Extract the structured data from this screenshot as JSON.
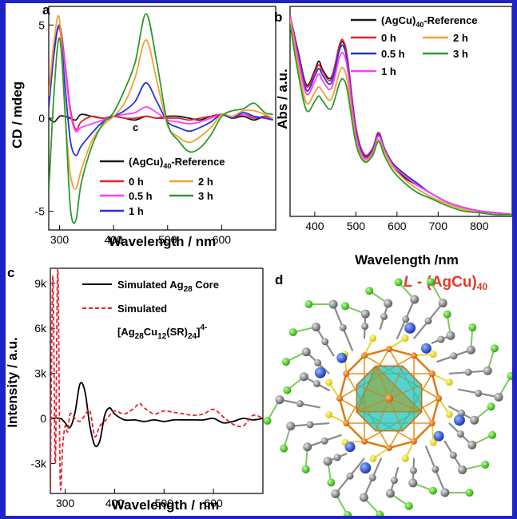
{
  "colors": {
    "frame": "#1e22c8",
    "reference": "#1a1a1a",
    "h0": "#e8212a",
    "h05": "#ff3cff",
    "h1": "#2432e0",
    "h2": "#f2a033",
    "h3": "#2b9a2b",
    "simulated_core": "#000000",
    "simulated_cluster": "#e8212a"
  },
  "panel_a": {
    "label": "a",
    "inline_label": "c",
    "ylabel": "CD / mdeg",
    "xlabel": "Wavelength / nm",
    "legend": [
      {
        "label": "(AgCu)",
        "sub": "40",
        "tail": "-Reference",
        "color_key": "reference"
      },
      {
        "label": "0 h",
        "color_key": "h0"
      },
      {
        "label": "2 h",
        "color_key": "h2"
      },
      {
        "label": "0.5 h",
        "color_key": "h05"
      },
      {
        "label": "3 h",
        "color_key": "h3"
      },
      {
        "label": "1 h",
        "color_key": "h1"
      }
    ]
  },
  "panel_b": {
    "label": "b",
    "ylabel": "Abs / a.u.",
    "xlabel": "Wavelength /nm",
    "legend": [
      {
        "label": "(AgCu)",
        "sub": "40",
        "tail": "-Reference",
        "color_key": "reference"
      },
      {
        "label": "0 h",
        "color_key": "h0"
      },
      {
        "label": "2 h",
        "color_key": "h2"
      },
      {
        "label": "0.5 h",
        "color_key": "h1"
      },
      {
        "label": "3 h",
        "color_key": "h3"
      },
      {
        "label": "1 h",
        "color_key": "h05"
      }
    ]
  },
  "panel_c": {
    "label": "c",
    "ylabel": "Intensity / a.u.",
    "xlabel": "Wavelength / nm",
    "legend": [
      {
        "label": "Simulated  Ag",
        "sub": "28",
        "tail": " Core",
        "style": "solid"
      },
      {
        "label": "Simulated",
        "style": "dashed"
      }
    ],
    "formula": {
      "a": "[Ag",
      "s1": "28",
      "b": "Cu",
      "s2": "12",
      "c": "(SR)",
      "s3": "24",
      "d": "]",
      "sup": "4-"
    }
  },
  "panel_d": {
    "label": "d",
    "title_prefix": "L",
    "title_mid": " - (AgCu)",
    "title_sub": "40",
    "title_color": "#e33a2a"
  },
  "chart_data": [
    {
      "type": "line",
      "panel": "a",
      "xlim": [
        280,
        700
      ],
      "ylim": [
        -6,
        6
      ],
      "xticks": [
        300,
        400,
        500,
        600
      ],
      "yticks": [
        -5,
        0,
        5
      ],
      "series": [
        {
          "name": "(AgCu)40-Reference",
          "color_key": "reference",
          "x": [
            280,
            290,
            300,
            310,
            320,
            330,
            340,
            360,
            380,
            400,
            420,
            440,
            460,
            480,
            500,
            520,
            540,
            560,
            580,
            600,
            620,
            640,
            660,
            680,
            695
          ],
          "y": [
            0,
            -0.2,
            0.1,
            0.1,
            0,
            -0.1,
            0.2,
            0.1,
            0,
            0.1,
            0,
            -0.1,
            0.1,
            0,
            0.1,
            0.1,
            0,
            -0.1,
            0.1,
            0.2,
            0,
            0.1,
            -0.1,
            0.1,
            -0.1
          ]
        },
        {
          "name": "0 h",
          "color_key": "h0",
          "x": [
            280,
            290,
            300,
            310,
            320,
            330,
            340,
            360,
            380,
            400,
            420,
            440,
            460,
            480,
            500,
            520,
            540,
            560,
            580,
            600,
            620,
            640,
            660,
            680,
            695
          ],
          "y": [
            0.5,
            3.5,
            5.0,
            3.0,
            0.5,
            -0.6,
            -0.2,
            0.1,
            0,
            0.1,
            0,
            0,
            0.1,
            0,
            0,
            0,
            -0.1,
            0,
            0.1,
            0.2,
            0,
            0.2,
            0,
            0.1,
            0
          ]
        },
        {
          "name": "0.5 h",
          "color_key": "h05",
          "x": [
            280,
            290,
            300,
            310,
            320,
            330,
            340,
            360,
            380,
            400,
            420,
            440,
            460,
            480,
            500,
            520,
            540,
            560,
            580,
            600,
            620,
            640,
            660,
            680,
            695
          ],
          "y": [
            0.8,
            3.8,
            4.8,
            2.8,
            0.3,
            -0.7,
            -0.5,
            -0.3,
            -0.1,
            0.1,
            0.2,
            0.3,
            0.6,
            0.3,
            -0.1,
            -0.2,
            -0.3,
            -0.2,
            0,
            0.2,
            0.1,
            0.2,
            0.1,
            0,
            0
          ]
        },
        {
          "name": "1 h",
          "color_key": "h1",
          "x": [
            280,
            290,
            300,
            310,
            320,
            330,
            340,
            360,
            380,
            400,
            420,
            440,
            460,
            480,
            500,
            520,
            540,
            560,
            580,
            600,
            620,
            640,
            660,
            680,
            695
          ],
          "y": [
            0.6,
            3.6,
            4.9,
            1.8,
            -1.2,
            -2.0,
            -1.5,
            -0.8,
            -0.2,
            0.1,
            0.4,
            0.9,
            1.9,
            0.9,
            -0.2,
            -0.5,
            -0.7,
            -0.5,
            -0.2,
            0.2,
            0,
            0.3,
            0.1,
            0,
            -0.1
          ]
        },
        {
          "name": "2 h",
          "color_key": "h2",
          "x": [
            280,
            290,
            300,
            310,
            320,
            330,
            340,
            360,
            380,
            400,
            420,
            440,
            460,
            480,
            500,
            520,
            540,
            560,
            580,
            600,
            620,
            640,
            660,
            680,
            695
          ],
          "y": [
            1.2,
            4.2,
            5.3,
            0.3,
            -3.0,
            -3.8,
            -2.8,
            -1.2,
            -0.4,
            0.1,
            0.8,
            2.2,
            4.2,
            2.0,
            -0.4,
            -1.0,
            -1.3,
            -1.0,
            -0.5,
            0.2,
            0.1,
            0.4,
            0.4,
            0.2,
            0
          ]
        },
        {
          "name": "3 h",
          "color_key": "h3",
          "x": [
            280,
            290,
            300,
            310,
            320,
            330,
            340,
            360,
            380,
            400,
            420,
            440,
            460,
            480,
            500,
            520,
            540,
            560,
            580,
            600,
            620,
            640,
            660,
            680,
            695
          ],
          "y": [
            -4.0,
            1.5,
            4.3,
            0.5,
            -4.8,
            -5.5,
            -3.5,
            -1.5,
            -0.3,
            0.3,
            1.5,
            3.0,
            5.6,
            3.0,
            -0.3,
            -1.2,
            -1.8,
            -1.6,
            -0.9,
            0.1,
            0.4,
            0.5,
            0.8,
            0.3,
            0.2
          ]
        }
      ]
    },
    {
      "type": "line",
      "panel": "b",
      "xlim": [
        340,
        880
      ],
      "ylim": [
        0,
        1.15
      ],
      "xticks": [
        400,
        500,
        600,
        700,
        800
      ],
      "yticks": [],
      "series": [
        {
          "name": "(AgCu)40-Reference",
          "color_key": "reference",
          "x": [
            340,
            360,
            380,
            400,
            410,
            420,
            440,
            460,
            470,
            480,
            500,
            520,
            540,
            555,
            570,
            590,
            620,
            650,
            680,
            720,
            760,
            800,
            840,
            880
          ],
          "y": [
            1.1,
            0.9,
            0.72,
            0.8,
            0.85,
            0.8,
            0.76,
            0.93,
            0.95,
            0.85,
            0.48,
            0.34,
            0.36,
            0.45,
            0.36,
            0.28,
            0.21,
            0.17,
            0.13,
            0.08,
            0.05,
            0.03,
            0.02,
            0.01
          ]
        },
        {
          "name": "0 h",
          "color_key": "h0",
          "x": [
            340,
            360,
            380,
            400,
            410,
            420,
            440,
            460,
            470,
            480,
            500,
            520,
            540,
            555,
            570,
            590,
            620,
            650,
            680,
            720,
            760,
            800,
            840,
            880
          ],
          "y": [
            1.1,
            0.89,
            0.71,
            0.79,
            0.83,
            0.79,
            0.75,
            0.94,
            0.96,
            0.86,
            0.49,
            0.34,
            0.37,
            0.46,
            0.37,
            0.29,
            0.22,
            0.17,
            0.13,
            0.08,
            0.05,
            0.03,
            0.02,
            0.01
          ]
        },
        {
          "name": "0.5 h",
          "color_key": "h1",
          "x": [
            340,
            360,
            380,
            400,
            410,
            420,
            440,
            460,
            470,
            480,
            500,
            520,
            540,
            555,
            570,
            590,
            620,
            650,
            680,
            720,
            760,
            800,
            840,
            880
          ],
          "y": [
            1.1,
            0.88,
            0.69,
            0.77,
            0.81,
            0.77,
            0.73,
            0.91,
            0.93,
            0.83,
            0.47,
            0.33,
            0.36,
            0.45,
            0.37,
            0.29,
            0.23,
            0.18,
            0.13,
            0.08,
            0.05,
            0.03,
            0.02,
            0.01
          ]
        },
        {
          "name": "1 h",
          "color_key": "h05",
          "x": [
            340,
            360,
            380,
            400,
            410,
            420,
            440,
            460,
            470,
            480,
            500,
            520,
            540,
            555,
            570,
            590,
            620,
            650,
            680,
            720,
            760,
            800,
            840,
            880
          ],
          "y": [
            1.1,
            0.86,
            0.67,
            0.74,
            0.78,
            0.74,
            0.7,
            0.87,
            0.89,
            0.8,
            0.45,
            0.32,
            0.35,
            0.44,
            0.36,
            0.28,
            0.22,
            0.17,
            0.13,
            0.08,
            0.05,
            0.03,
            0.02,
            0.01
          ]
        },
        {
          "name": "2 h",
          "color_key": "h2",
          "x": [
            340,
            360,
            380,
            400,
            410,
            420,
            440,
            460,
            470,
            480,
            500,
            520,
            540,
            555,
            570,
            590,
            620,
            650,
            680,
            720,
            760,
            800,
            840,
            880
          ],
          "y": [
            1.08,
            0.82,
            0.62,
            0.68,
            0.71,
            0.68,
            0.64,
            0.79,
            0.81,
            0.73,
            0.42,
            0.31,
            0.34,
            0.42,
            0.35,
            0.27,
            0.2,
            0.15,
            0.11,
            0.07,
            0.04,
            0.02,
            0.01,
            0.01
          ]
        },
        {
          "name": "3 h",
          "color_key": "h3",
          "x": [
            340,
            360,
            380,
            400,
            410,
            420,
            440,
            460,
            470,
            480,
            500,
            520,
            540,
            555,
            570,
            590,
            620,
            650,
            680,
            720,
            760,
            800,
            840,
            880
          ],
          "y": [
            1.05,
            0.78,
            0.58,
            0.63,
            0.66,
            0.63,
            0.59,
            0.73,
            0.75,
            0.68,
            0.4,
            0.3,
            0.33,
            0.41,
            0.33,
            0.25,
            0.18,
            0.13,
            0.1,
            0.06,
            0.03,
            0.02,
            0.01,
            0.01
          ]
        }
      ]
    },
    {
      "type": "line",
      "panel": "c",
      "xlim": [
        270,
        700
      ],
      "ylim": [
        -5000,
        10000
      ],
      "xticks": [
        300,
        400,
        500,
        600
      ],
      "yticks": [
        -3000,
        0,
        3000,
        6000,
        9000
      ],
      "ytick_labels": [
        "-3k",
        "0",
        "3k",
        "6k",
        "9k"
      ],
      "series": [
        {
          "name": "Simulated Ag28 Core",
          "style": "solid",
          "x": [
            270,
            290,
            300,
            310,
            320,
            330,
            340,
            350,
            360,
            370,
            380,
            390,
            400,
            420,
            440,
            460,
            480,
            500,
            520,
            540,
            560,
            580,
            600,
            620,
            640,
            660,
            680,
            700
          ],
          "y": [
            0,
            0,
            -300,
            -600,
            400,
            2300,
            1800,
            -500,
            -1800,
            -1500,
            200,
            700,
            300,
            -100,
            -100,
            -200,
            -100,
            -200,
            -100,
            -100,
            -100,
            -100,
            0,
            -300,
            -200,
            0,
            -100,
            0
          ]
        },
        {
          "name": "Simulated [Ag28Cu12(SR)24]4-",
          "style": "dashed",
          "x": [
            270,
            275,
            280,
            285,
            290,
            295,
            300,
            305,
            310,
            320,
            330,
            340,
            350,
            360,
            370,
            380,
            390,
            400,
            420,
            440,
            450,
            460,
            480,
            500,
            520,
            540,
            560,
            580,
            600,
            620,
            640,
            660,
            680,
            700
          ],
          "y": [
            -4800,
            9500,
            -3000,
            10000,
            -4200,
            -1800,
            -500,
            -900,
            300,
            0,
            -200,
            200,
            500,
            -1200,
            -500,
            -200,
            200,
            500,
            300,
            700,
            1000,
            700,
            300,
            500,
            400,
            300,
            200,
            300,
            600,
            100,
            -400,
            -500,
            200,
            0
          ]
        }
      ]
    }
  ]
}
